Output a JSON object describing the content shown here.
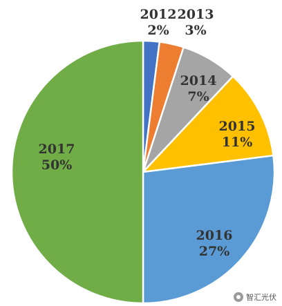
{
  "chart_data": {
    "type": "pie",
    "title": "",
    "categories": [
      "2012",
      "2013",
      "2014",
      "2015",
      "2016",
      "2017"
    ],
    "values": [
      2,
      3,
      7,
      11,
      27,
      50
    ],
    "percent_labels": [
      "2%",
      "3%",
      "7%",
      "11%",
      "27%",
      "50%"
    ],
    "colors": [
      "#4472C4",
      "#ED7D31",
      "#A5A5A5",
      "#FFC000",
      "#5B9BD5",
      "#70AD47"
    ],
    "start_angle": "12 o'clock",
    "direction": "clockwise",
    "legend": "none"
  },
  "watermark": {
    "text": "智汇光伏",
    "icon": "wechat-icon"
  }
}
